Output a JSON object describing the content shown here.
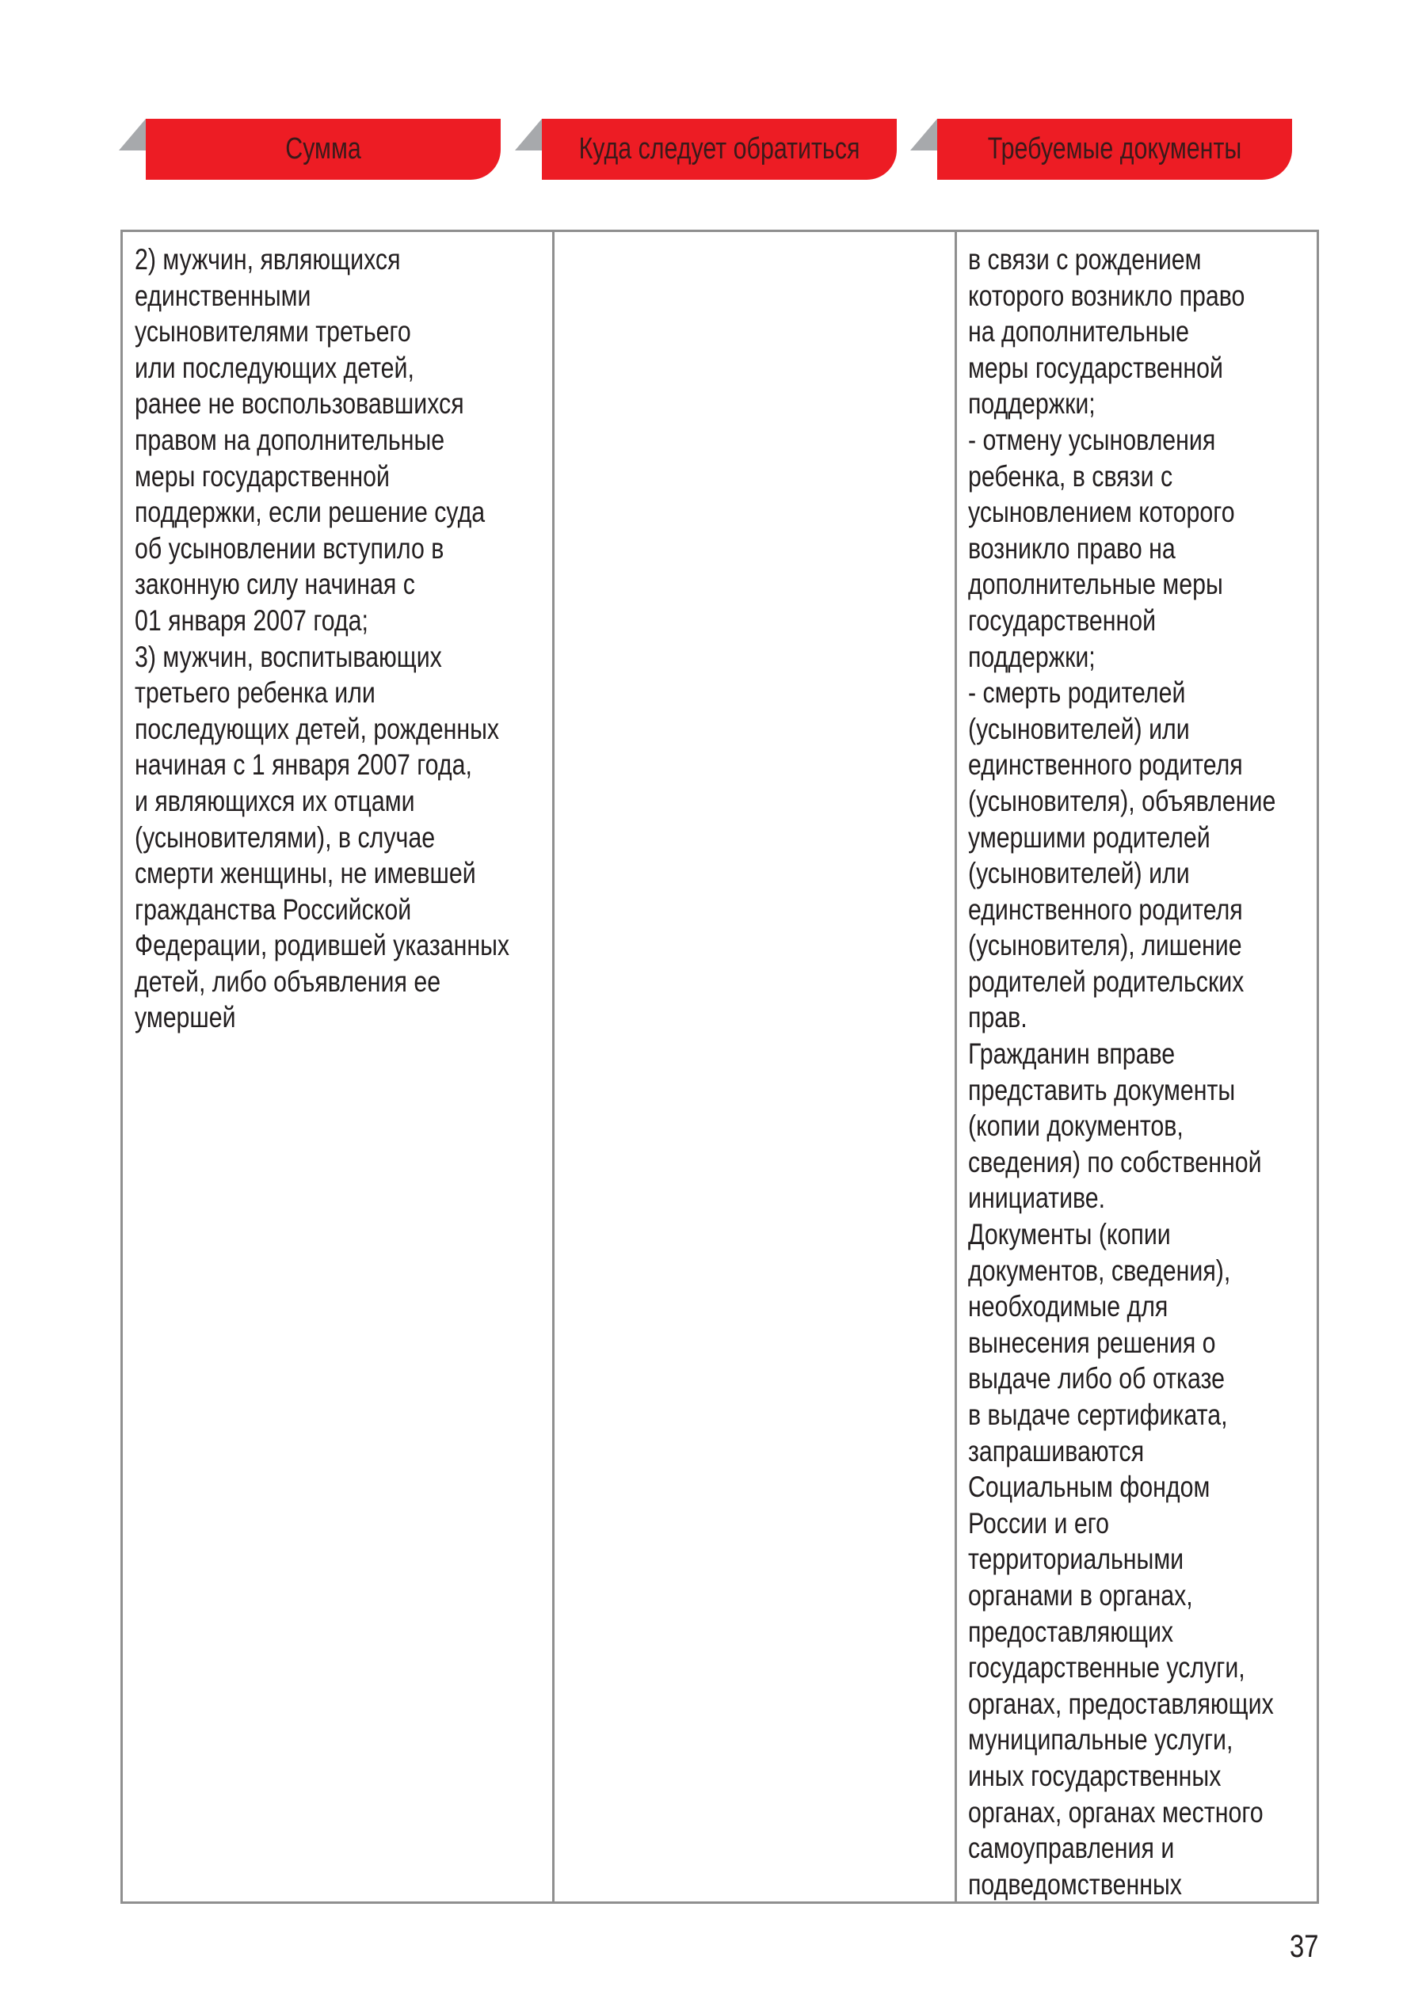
{
  "header_tabs": [
    "Сумма",
    "Куда следует обратиться",
    "Требуемые документы"
  ],
  "colors": {
    "tab": "#ed1c24",
    "tab_corner": "#a7a9ac",
    "border": "#8f8f8f"
  },
  "table": {
    "col1_lines": [
      "2) мужчин, являющихся",
      "единственными",
      "усыновителями третьего",
      "или последующих детей,",
      "ранее не воспользовавшихся",
      "правом на дополнительные",
      "меры государственной",
      "поддержки, если решение суда",
      "об усыновлении вступило в",
      "законную силу начиная с",
      "01 января 2007 года;",
      "3) мужчин, воспитывающих",
      "третьего ребенка или",
      "последующих детей, рожденных",
      "начиная с 1 января 2007 года,",
      "и являющихся их отцами",
      "(усыновителями), в случае",
      "смерти женщины, не имевшей",
      "гражданства Российской",
      "Федерации, родившей указанных",
      "детей, либо объявления ее",
      "умершей"
    ],
    "col2_lines": [],
    "col3_lines": [
      "в связи с рождением",
      "которого возникло право",
      "на дополнительные",
      "меры государственной",
      "поддержки;",
      "- отмену усыновления",
      "ребенка, в связи с",
      "усыновлением которого",
      "возникло право на",
      "дополнительные меры",
      "государственной",
      "поддержки;",
      "- смерть родителей",
      "(усыновителей) или",
      "единственного родителя",
      "(усыновителя), объявление",
      "умершими родителей",
      "(усыновителей) или",
      "единственного родителя",
      "(усыновителя), лишение",
      "родителей родительских",
      "прав.",
      "Гражданин вправе",
      "представить документы",
      "(копии документов,",
      "сведения) по собственной",
      "инициативе.",
      "Документы (копии",
      "документов, сведения),",
      "необходимые для",
      "вынесения решения о",
      "выдаче либо об отказе",
      "в выдаче сертификата,",
      "запрашиваются",
      "Социальным фондом",
      "России и его",
      "территориальными",
      "органами в органах,",
      "предоставляющих",
      "государственные услуги,",
      "органах, предоставляющих",
      "муниципальные услуги,",
      "иных государственных",
      "органах, органах местного",
      "самоуправления и",
      "подведомственных"
    ]
  },
  "page_number": "37"
}
